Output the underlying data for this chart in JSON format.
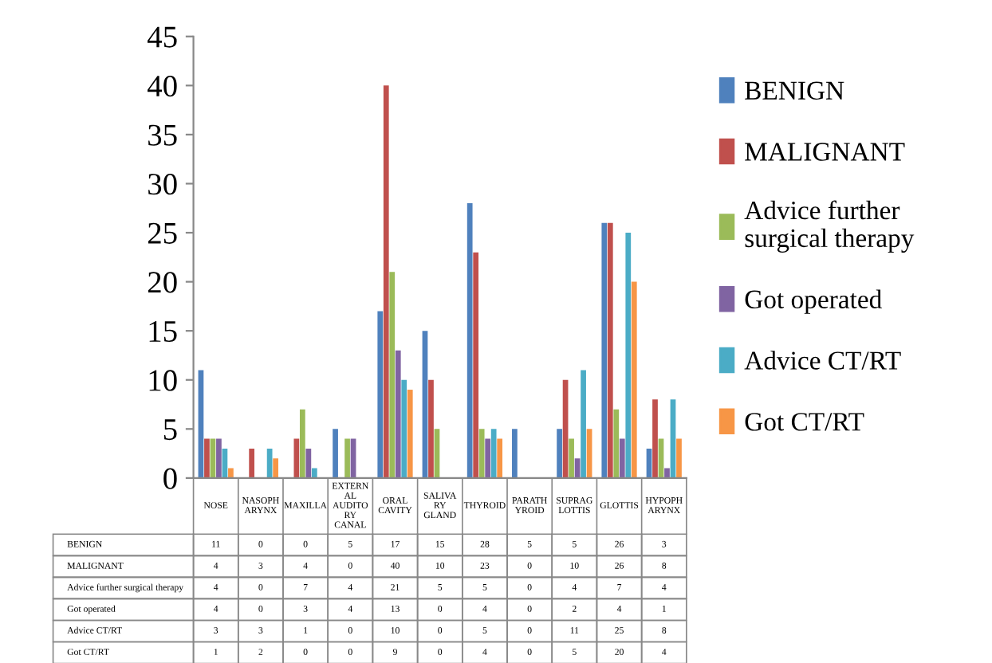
{
  "chart_data": {
    "type": "bar",
    "categories": [
      "NOSE",
      "NASOPHARYNX",
      "MAXILLA",
      "EXTERNAL AUDITORY CANAL",
      "ORAL CAVITY",
      "SALIVARY GLAND",
      "THYROID",
      "PARATHYROID",
      "SUPRAGLOTTIS",
      "GLOTTIS",
      "HYPOPHARYNX"
    ],
    "series": [
      {
        "name": "BENIGN",
        "color": "#4f81bd",
        "values": [
          11,
          0,
          0,
          5,
          17,
          15,
          28,
          5,
          5,
          26,
          3
        ]
      },
      {
        "name": "MALIGNANT",
        "color": "#c0504d",
        "values": [
          4,
          3,
          4,
          0,
          40,
          10,
          23,
          0,
          10,
          26,
          8
        ]
      },
      {
        "name": "Advice further surgical therapy",
        "color": "#9bbb59",
        "values": [
          4,
          0,
          7,
          4,
          21,
          5,
          5,
          0,
          4,
          7,
          4
        ]
      },
      {
        "name": "Got operated",
        "color": "#8064a2",
        "values": [
          4,
          0,
          3,
          4,
          13,
          0,
          4,
          0,
          2,
          4,
          1
        ]
      },
      {
        "name": "Advice CT/RT",
        "color": "#4bacc6",
        "values": [
          3,
          3,
          1,
          0,
          10,
          0,
          5,
          0,
          11,
          25,
          8
        ]
      },
      {
        "name": "Got CT/RT",
        "color": "#f79646",
        "values": [
          1,
          2,
          0,
          0,
          9,
          0,
          4,
          0,
          5,
          20,
          4
        ]
      }
    ],
    "ylim": [
      0,
      45
    ],
    "yticks": [
      0,
      5,
      10,
      15,
      20,
      25,
      30,
      35,
      40,
      45
    ],
    "grid": false,
    "legend": "right",
    "data_labels": true
  }
}
